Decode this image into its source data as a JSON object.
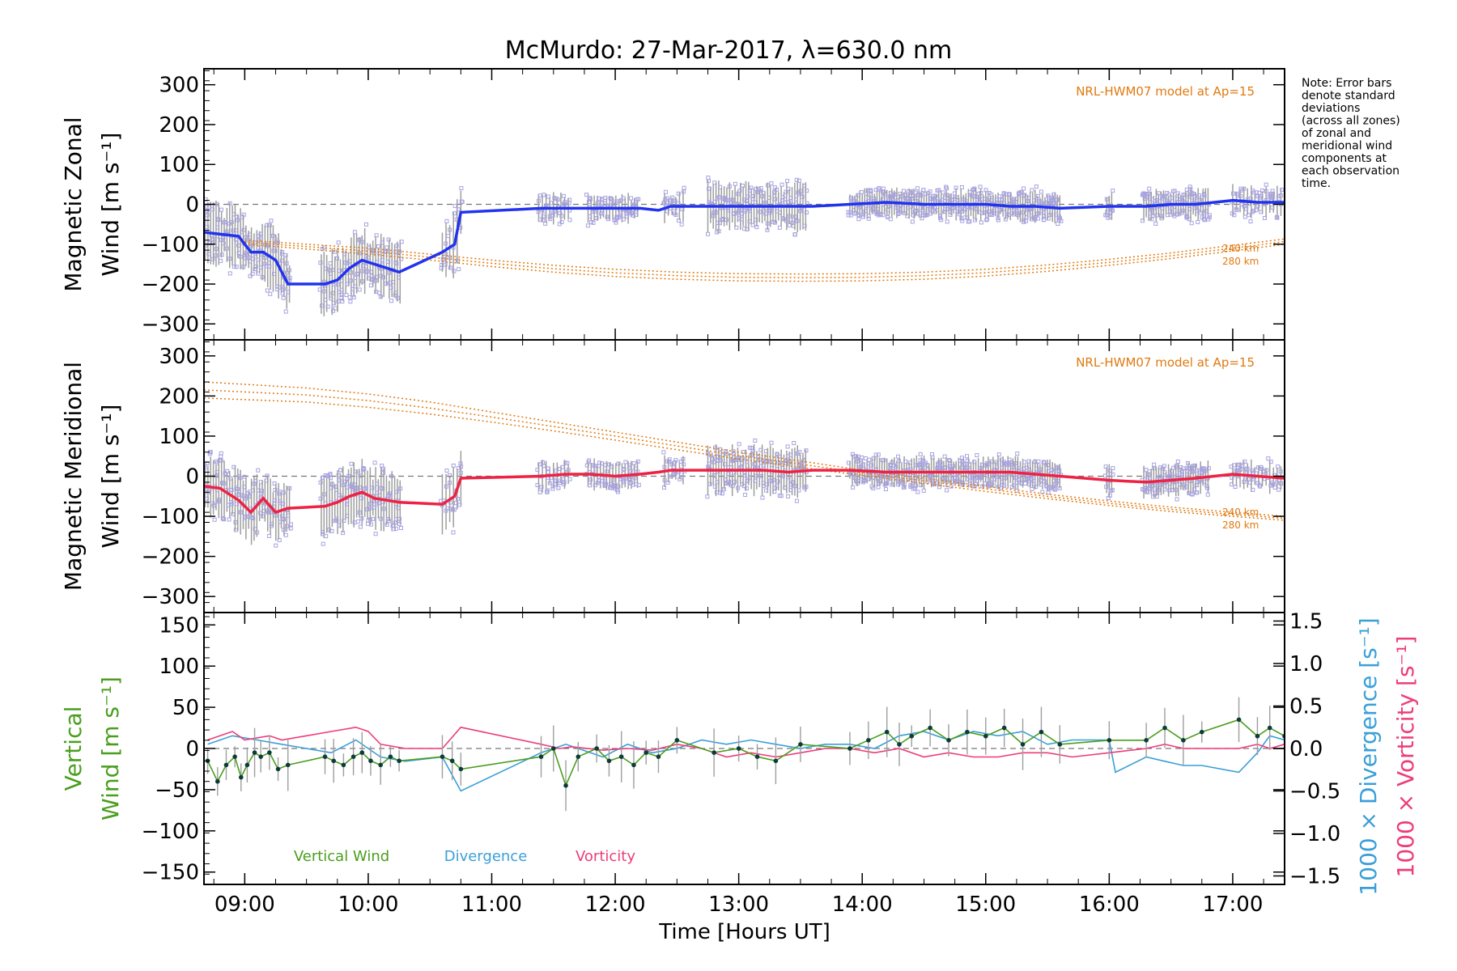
{
  "title": "McMurdo: 27-Mar-2017, λ=630.0 nm",
  "note": {
    "lines": [
      "Note: Error bars",
      "denote standard",
      "deviations",
      "(across all zones)",
      "of zonal and",
      "meridional wind",
      "components at",
      "each observation",
      "time."
    ]
  },
  "colors": {
    "zonal": "#2233ee",
    "meridional": "#ee2244",
    "model": "#e07a10",
    "vertical": "#4a9e1e",
    "divergence": "#3a9fd8",
    "vorticity": "#ee3c7a",
    "zone_points": "#a7a3e0",
    "error_bars": "#9e9e9e"
  },
  "chart_data": [
    {
      "id": "zonal",
      "type": "line",
      "title": "",
      "ylabel": "Magnetic Zonal Wind [m s⁻¹]",
      "ylabel_lines": [
        "Magnetic Zonal",
        "Wind [m s⁻¹]"
      ],
      "xlim": [
        8.67,
        17.42
      ],
      "ylim": [
        -340,
        340
      ],
      "yticks": [
        -300,
        -200,
        -100,
        0,
        100,
        200,
        300
      ],
      "ytick_labels": [
        "−300",
        "−200",
        "−100",
        "0",
        "100",
        "200",
        "300"
      ],
      "model_label": "NRL-HWM07 model at Ap=15",
      "model_curve_labels": [
        "240 km",
        "280 km"
      ],
      "series": [
        {
          "name": "Magnetic Zonal Wind",
          "x": [
            8.67,
            8.8,
            8.95,
            9.05,
            9.15,
            9.25,
            9.35,
            9.65,
            9.75,
            9.85,
            9.95,
            10.05,
            10.15,
            10.25,
            10.6,
            10.7,
            10.75,
            11.4,
            11.6,
            11.8,
            12.0,
            12.2,
            12.35,
            12.45,
            12.6,
            12.8,
            13.0,
            13.2,
            13.4,
            13.6,
            13.9,
            14.2,
            14.5,
            14.8,
            15.0,
            15.2,
            15.4,
            15.6,
            16.0,
            16.3,
            16.5,
            16.7,
            17.0,
            17.2,
            17.42
          ],
          "values": [
            -70,
            -75,
            -80,
            -120,
            -120,
            -140,
            -200,
            -200,
            -190,
            -160,
            -140,
            -150,
            -160,
            -170,
            -120,
            -100,
            -20,
            -10,
            -10,
            -10,
            -10,
            -10,
            -15,
            -5,
            -5,
            -5,
            -5,
            -5,
            -5,
            -5,
            0,
            5,
            0,
            0,
            0,
            -5,
            -5,
            -10,
            -5,
            -5,
            0,
            0,
            10,
            5,
            5
          ]
        },
        {
          "name": "NRL-HWM07 240 km",
          "x": [
            9.0,
            9.5,
            10.0,
            10.5,
            11.0,
            11.5,
            12.0,
            12.5,
            13.0,
            13.5,
            14.0,
            14.5,
            15.0,
            15.5,
            16.0,
            16.5,
            17.0,
            17.42
          ],
          "values": [
            -90,
            -100,
            -110,
            -125,
            -140,
            -153,
            -163,
            -170,
            -174,
            -175,
            -174,
            -170,
            -163,
            -152,
            -138,
            -122,
            -103,
            -87
          ]
        },
        {
          "name": "NRL-HWM07 280 km",
          "x": [
            9.0,
            9.5,
            10.0,
            10.5,
            11.0,
            11.5,
            12.0,
            12.5,
            13.0,
            13.5,
            14.0,
            14.5,
            15.0,
            15.5,
            16.0,
            16.5,
            17.0,
            17.42
          ],
          "values": [
            -100,
            -112,
            -125,
            -140,
            -156,
            -170,
            -181,
            -188,
            -192,
            -193,
            -192,
            -188,
            -180,
            -168,
            -153,
            -136,
            -117,
            -100
          ]
        }
      ]
    },
    {
      "id": "meridional",
      "type": "line",
      "title": "",
      "ylabel": "Magnetic Meridional Wind [m s⁻¹]",
      "ylabel_lines": [
        "Magnetic Meridional",
        "Wind [m s⁻¹]"
      ],
      "xlim": [
        8.67,
        17.42
      ],
      "ylim": [
        -340,
        340
      ],
      "yticks": [
        -300,
        -200,
        -100,
        0,
        100,
        200,
        300
      ],
      "ytick_labels": [
        "−300",
        "−200",
        "−100",
        "0",
        "100",
        "200",
        "300"
      ],
      "model_label": "NRL-HWM07 model at Ap=15",
      "model_curve_labels": [
        "240 km",
        "280 km"
      ],
      "series": [
        {
          "name": "Magnetic Meridional Wind",
          "x": [
            8.67,
            8.8,
            8.95,
            9.05,
            9.15,
            9.25,
            9.35,
            9.65,
            9.75,
            9.85,
            9.95,
            10.05,
            10.15,
            10.25,
            10.6,
            10.7,
            10.75,
            11.4,
            11.6,
            11.8,
            12.0,
            12.2,
            12.35,
            12.45,
            12.6,
            12.8,
            13.0,
            13.2,
            13.4,
            13.6,
            13.9,
            14.2,
            14.5,
            14.8,
            15.0,
            15.2,
            15.4,
            15.6,
            16.0,
            16.3,
            16.5,
            16.7,
            17.0,
            17.2,
            17.42
          ],
          "values": [
            -25,
            -30,
            -60,
            -90,
            -55,
            -90,
            -80,
            -75,
            -65,
            -50,
            -40,
            -55,
            -60,
            -65,
            -70,
            -50,
            -5,
            0,
            5,
            5,
            0,
            5,
            10,
            15,
            15,
            15,
            15,
            15,
            10,
            15,
            15,
            10,
            10,
            10,
            10,
            10,
            5,
            0,
            -10,
            -15,
            -10,
            -5,
            5,
            0,
            -5
          ]
        },
        {
          "name": "NRL-HWM07 240 km",
          "x": [
            8.67,
            9.5,
            10.0,
            10.5,
            11.0,
            11.5,
            12.0,
            12.5,
            13.0,
            13.5,
            14.0,
            14.5,
            15.0,
            15.5,
            16.0,
            16.5,
            17.0,
            17.42
          ],
          "values": [
            235,
            220,
            205,
            185,
            160,
            135,
            110,
            85,
            60,
            38,
            15,
            -5,
            -25,
            -45,
            -62,
            -77,
            -90,
            -100
          ]
        },
        {
          "name": "NRL-HWM07 280 km",
          "x": [
            8.67,
            9.5,
            10.0,
            10.5,
            11.0,
            11.5,
            12.0,
            12.5,
            13.0,
            13.5,
            14.0,
            14.5,
            15.0,
            15.5,
            16.0,
            16.5,
            17.0,
            17.42
          ],
          "values": [
            195,
            185,
            172,
            155,
            135,
            113,
            90,
            66,
            43,
            22,
            2,
            -18,
            -38,
            -56,
            -73,
            -88,
            -100,
            -110
          ]
        }
      ]
    },
    {
      "id": "vertical",
      "type": "line",
      "title": "",
      "xlabel": "Time [Hours UT]",
      "ylabel": "Vertical Wind [m s⁻¹]",
      "ylabel_lines": [
        "Vertical",
        "Wind [m s⁻¹]"
      ],
      "right_ylabels": [
        "1000 × Divergence [s⁻¹]",
        "1000 × Vorticity [s⁻¹]"
      ],
      "xlim": [
        8.67,
        17.42
      ],
      "ylim": [
        -165,
        165
      ],
      "yticks": [
        -150,
        -100,
        -50,
        0,
        50,
        100,
        150
      ],
      "ytick_labels": [
        "−150",
        "−100",
        "−50",
        "0",
        "50",
        "100",
        "150"
      ],
      "y2lim": [
        -1.6,
        1.6
      ],
      "y2ticks": [
        -1.5,
        -1.0,
        -0.5,
        0.0,
        0.5,
        1.0,
        1.5
      ],
      "y2tick_labels": [
        "−1.5",
        "−1.0",
        "−0.5",
        "0.0",
        "0.5",
        "1.0",
        "1.5"
      ],
      "xticks": [
        9,
        10,
        11,
        12,
        13,
        14,
        15,
        16,
        17
      ],
      "xtick_labels": [
        "09:00",
        "10:00",
        "11:00",
        "12:00",
        "13:00",
        "14:00",
        "15:00",
        "16:00",
        "17:00"
      ],
      "legend": [
        "Vertical Wind",
        "Divergence",
        "Vorticity"
      ],
      "series": [
        {
          "name": "Vertical Wind",
          "axis": "left",
          "x": [
            8.7,
            8.78,
            8.85,
            8.92,
            8.97,
            9.02,
            9.08,
            9.13,
            9.2,
            9.27,
            9.35,
            9.65,
            9.72,
            9.8,
            9.88,
            9.95,
            10.02,
            10.1,
            10.18,
            10.25,
            10.6,
            10.68,
            10.75,
            11.4,
            11.5,
            11.6,
            11.7,
            11.85,
            11.95,
            12.05,
            12.15,
            12.25,
            12.35,
            12.5,
            12.8,
            13.0,
            13.15,
            13.3,
            13.5,
            13.9,
            14.05,
            14.2,
            14.3,
            14.4,
            14.55,
            14.7,
            14.85,
            15.0,
            15.15,
            15.3,
            15.45,
            15.6,
            16.0,
            16.3,
            16.45,
            16.6,
            16.75,
            17.05,
            17.2,
            17.3,
            17.42
          ],
          "values": [
            -15,
            -40,
            -20,
            -10,
            -35,
            -20,
            -5,
            -10,
            -5,
            -25,
            -20,
            -10,
            -15,
            -20,
            -10,
            -5,
            -15,
            -20,
            -10,
            -15,
            -10,
            -15,
            -25,
            -10,
            0,
            -45,
            -10,
            0,
            -15,
            -10,
            -20,
            -5,
            -10,
            10,
            -5,
            0,
            -10,
            -15,
            5,
            0,
            10,
            20,
            5,
            15,
            25,
            10,
            20,
            15,
            25,
            5,
            20,
            5,
            10,
            10,
            25,
            10,
            20,
            35,
            15,
            25,
            15
          ]
        },
        {
          "name": "Divergence",
          "axis": "right",
          "x": [
            8.7,
            8.9,
            9.1,
            9.3,
            9.5,
            9.7,
            9.9,
            10.1,
            10.3,
            10.6,
            10.75,
            11.4,
            11.6,
            11.7,
            11.9,
            12.1,
            12.3,
            12.5,
            12.7,
            12.9,
            13.1,
            13.3,
            13.5,
            13.7,
            13.9,
            14.1,
            14.3,
            14.5,
            14.7,
            14.9,
            15.1,
            15.3,
            15.5,
            15.7,
            16.0,
            16.05,
            16.3,
            16.45,
            16.6,
            16.75,
            17.05,
            17.2,
            17.3,
            17.42
          ],
          "values": [
            0.05,
            0.15,
            0.1,
            0.05,
            0.0,
            -0.05,
            0.1,
            -0.1,
            -0.15,
            -0.1,
            -0.5,
            -0.05,
            0.05,
            0.0,
            -0.1,
            0.05,
            -0.05,
            0.0,
            0.1,
            0.05,
            0.1,
            0.05,
            0.0,
            0.05,
            0.05,
            0.0,
            0.15,
            0.2,
            0.1,
            0.2,
            0.15,
            0.2,
            0.05,
            0.1,
            0.1,
            -0.28,
            -0.1,
            -0.15,
            -0.2,
            -0.2,
            -0.28,
            -0.05,
            0.15,
            0.1
          ]
        },
        {
          "name": "Vorticity",
          "axis": "right",
          "x": [
            8.7,
            8.9,
            9.0,
            9.2,
            9.3,
            9.5,
            9.7,
            9.9,
            10.0,
            10.1,
            10.3,
            10.6,
            10.75,
            11.4,
            11.55,
            11.65,
            11.9,
            12.1,
            12.3,
            12.5,
            12.7,
            12.9,
            13.1,
            13.3,
            13.5,
            13.7,
            13.9,
            14.1,
            14.3,
            14.5,
            14.7,
            14.9,
            15.1,
            15.3,
            15.5,
            15.7,
            16.0,
            16.3,
            16.45,
            16.6,
            16.75,
            17.05,
            17.2,
            17.3,
            17.42
          ],
          "values": [
            0.1,
            0.2,
            0.1,
            0.15,
            0.1,
            0.15,
            0.2,
            0.25,
            0.2,
            0.05,
            0.0,
            0.0,
            0.25,
            0.05,
            0.0,
            0.02,
            -0.02,
            0.0,
            -0.02,
            0.05,
            0.0,
            -0.1,
            -0.05,
            -0.1,
            -0.05,
            0.0,
            0.0,
            -0.05,
            0.0,
            -0.1,
            -0.05,
            -0.1,
            -0.1,
            -0.05,
            -0.05,
            -0.1,
            -0.05,
            0.0,
            0.05,
            0.0,
            0.0,
            0.0,
            0.05,
            0.0,
            0.05
          ]
        }
      ]
    }
  ]
}
